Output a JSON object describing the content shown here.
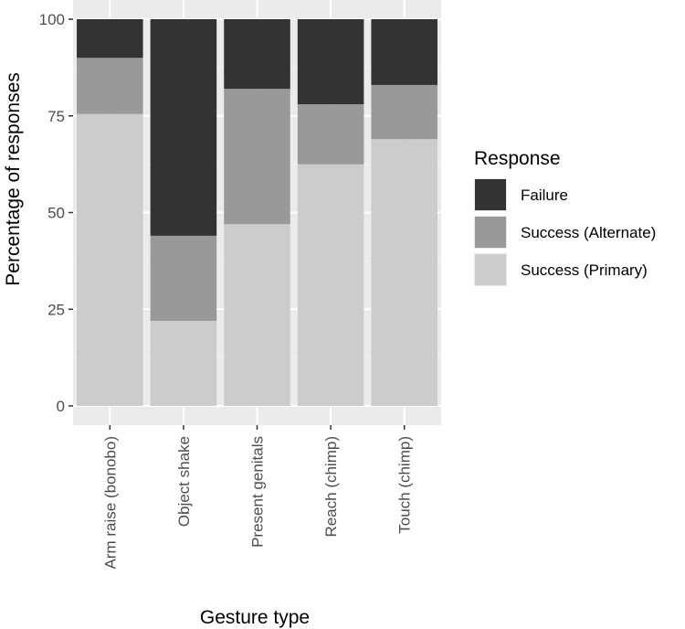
{
  "chart_data": {
    "type": "bar",
    "stacked": true,
    "categories": [
      "Arm raise (bonobo)",
      "Object shake",
      "Present genitals",
      "Reach (chimp)",
      "Touch (chimp)"
    ],
    "series": [
      {
        "name": "Success (Primary)",
        "color": "#cccccc",
        "values": [
          75.5,
          22,
          47,
          62.5,
          69
        ]
      },
      {
        "name": "Success (Alternate)",
        "color": "#999999",
        "values": [
          14.5,
          22,
          35,
          15.5,
          14
        ]
      },
      {
        "name": "Failure",
        "color": "#333333",
        "values": [
          10,
          56,
          18,
          22,
          17
        ]
      }
    ],
    "xlabel": "Gesture type",
    "ylabel": "Percentage of responses",
    "ylim": [
      0,
      100
    ],
    "yticks": [
      0,
      25,
      50,
      75,
      100
    ],
    "grid": true,
    "legend": {
      "title": "Response",
      "position": "right",
      "entries": [
        "Failure",
        "Success (Alternate)",
        "Success (Primary)"
      ]
    }
  },
  "colors": {
    "panel_background": "#ebebeb",
    "grid_major": "#ffffff",
    "grid_minor": "#f2f2f2"
  }
}
